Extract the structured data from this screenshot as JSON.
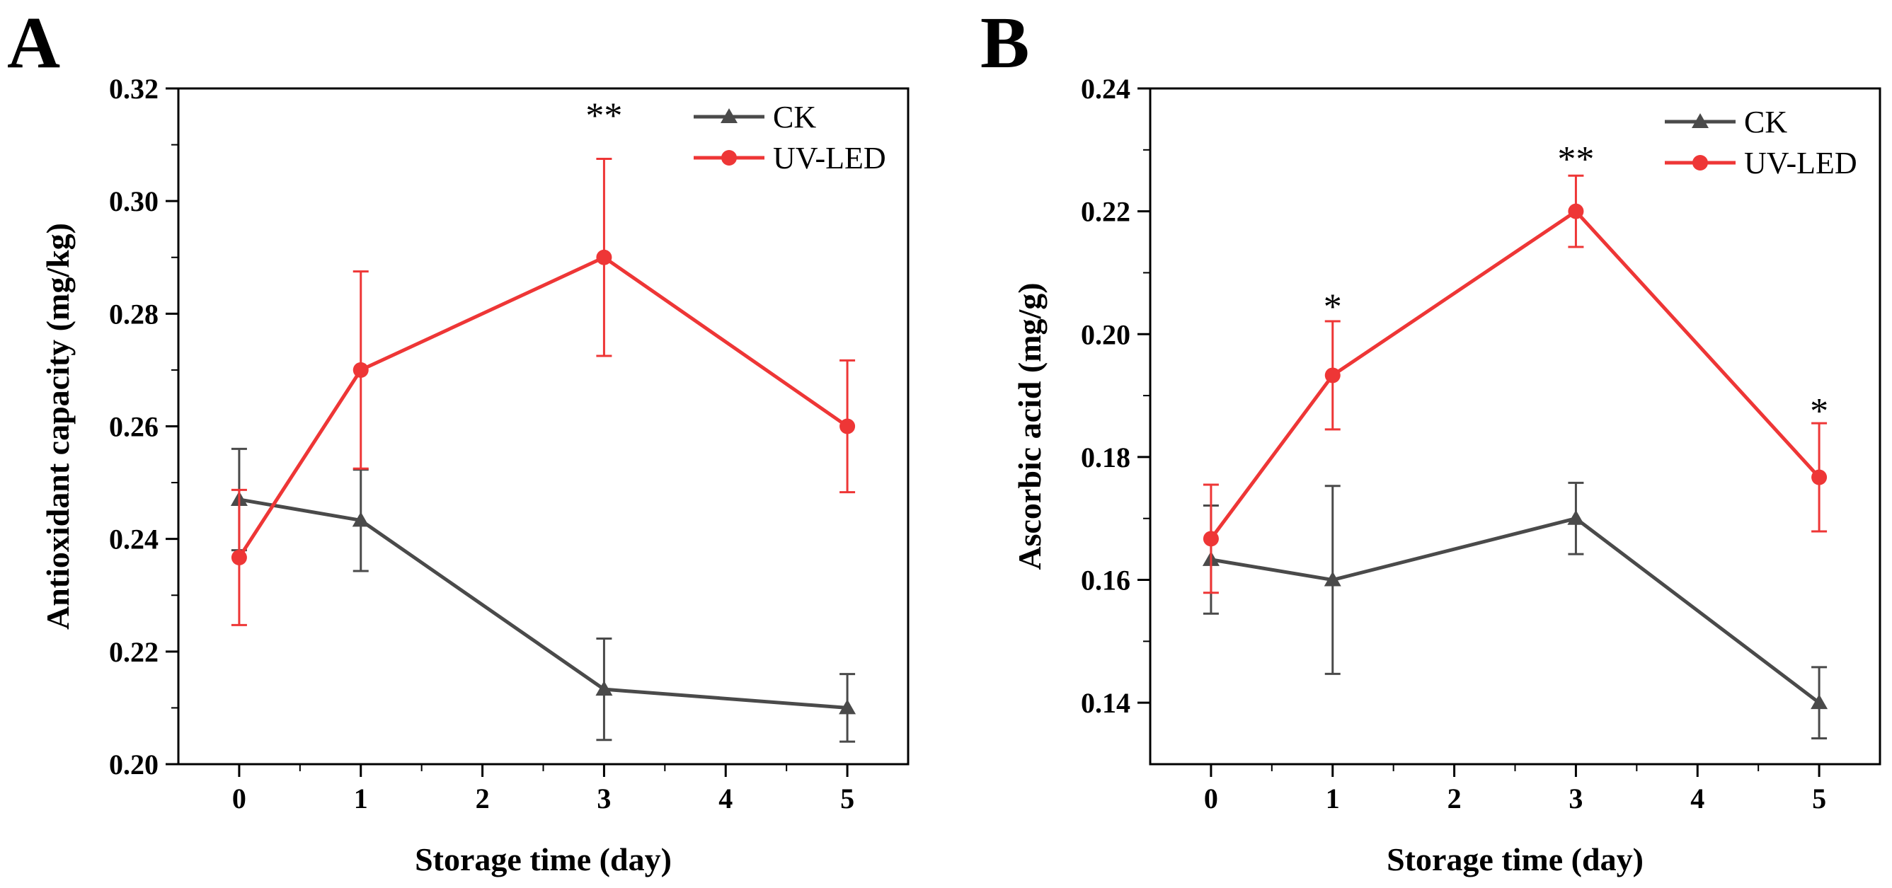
{
  "chart_data": [
    {
      "type": "line",
      "panel_label": "A",
      "title": "",
      "xlabel": "Storage time (day)",
      "ylabel": "Antioxidant capacity (mg/kg)",
      "xlim": [
        -0.5,
        5.5
      ],
      "ylim": [
        0.2,
        0.32
      ],
      "xticks": [
        0,
        1,
        2,
        3,
        4,
        5
      ],
      "yticks": [
        0.2,
        0.22,
        0.24,
        0.26,
        0.28,
        0.3,
        0.32
      ],
      "ytick_labels": [
        "0.20",
        "0.22",
        "0.24",
        "0.26",
        "0.28",
        "0.30",
        "0.32"
      ],
      "legend_position": "top-right",
      "series": [
        {
          "name": "CK",
          "color": "#4a4a4a",
          "marker": "triangle",
          "x": [
            0,
            1,
            3,
            5
          ],
          "values": [
            0.247,
            0.2433,
            0.2133,
            0.21
          ],
          "errors": [
            0.009,
            0.009,
            0.009,
            0.006
          ]
        },
        {
          "name": "UV-LED",
          "color": "#ee3636",
          "marker": "circle",
          "x": [
            0,
            1,
            3,
            5
          ],
          "values": [
            0.2367,
            0.27,
            0.29,
            0.26
          ],
          "errors": [
            0.012,
            0.0175,
            0.0175,
            0.0117
          ]
        }
      ],
      "annotations": [
        {
          "x": 3,
          "y": 0.313,
          "text": "**"
        }
      ]
    },
    {
      "type": "line",
      "panel_label": "B",
      "title": "",
      "xlabel": "Storage time (day)",
      "ylabel": "Ascorbic acid (mg/g)",
      "xlim": [
        -0.5,
        5.5
      ],
      "ylim": [
        0.13,
        0.24
      ],
      "xticks": [
        0,
        1,
        2,
        3,
        4,
        5
      ],
      "yticks": [
        0.14,
        0.16,
        0.18,
        0.2,
        0.22,
        0.24
      ],
      "ytick_labels": [
        "0.14",
        "0.16",
        "0.18",
        "0.20",
        "0.22",
        "0.24"
      ],
      "legend_position": "top-right",
      "series": [
        {
          "name": "CK",
          "color": "#4a4a4a",
          "marker": "triangle",
          "x": [
            0,
            1,
            3,
            5
          ],
          "values": [
            0.1633,
            0.16,
            0.17,
            0.14
          ],
          "errors": [
            0.0088,
            0.0153,
            0.0058,
            0.0058
          ]
        },
        {
          "name": "UV-LED",
          "color": "#ee3636",
          "marker": "circle",
          "x": [
            0,
            1,
            3,
            5
          ],
          "values": [
            0.1667,
            0.1933,
            0.22,
            0.1767
          ],
          "errors": [
            0.0088,
            0.0088,
            0.0058,
            0.0088
          ]
        }
      ],
      "annotations": [
        {
          "x": 1,
          "y": 0.2025,
          "text": "*"
        },
        {
          "x": 3,
          "y": 0.2265,
          "text": "**"
        },
        {
          "x": 5,
          "y": 0.1855,
          "text": "*"
        }
      ]
    }
  ]
}
